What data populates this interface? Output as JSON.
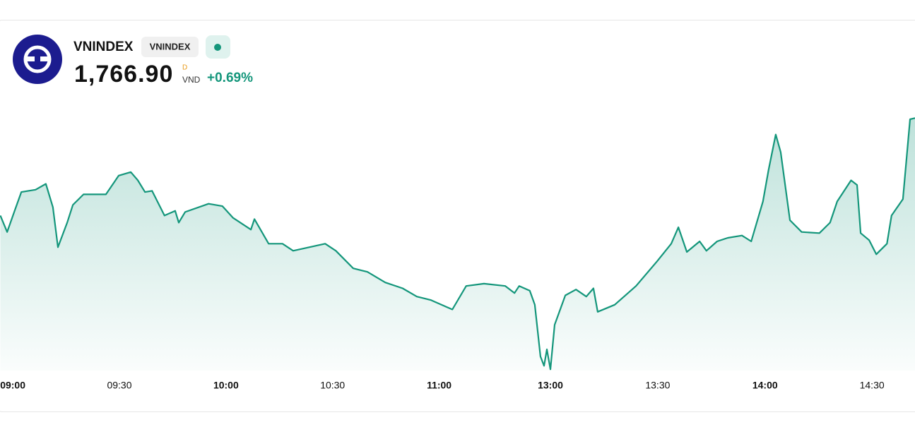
{
  "header": {
    "name": "VNINDEX",
    "badge": "VNINDEX",
    "price": "1,766.90",
    "price_note": "D",
    "currency": "VND",
    "change": "+0.69%"
  },
  "chart_data": {
    "type": "line",
    "color": "#14967b",
    "x": [
      -3.5,
      -1.6,
      0.4,
      2.4,
      6.4,
      9.3,
      11.3,
      12.7,
      15.3,
      16.9,
      19.9,
      26.2,
      29.8,
      33.2,
      35.2,
      37.2,
      39.2,
      42.7,
      45.7,
      46.7,
      48.5,
      55.1,
      59.0,
      62.0,
      67.0,
      68.0,
      72.0,
      75.9,
      78.9,
      87.9,
      90.9,
      95.8,
      99.8,
      104.8,
      109.7,
      113.7,
      117.7,
      123.7,
      127.6,
      132.6,
      138.6,
      141.2,
      142.5,
      145.5,
      146.9,
      148.5,
      149.5,
      150.3,
      151.3,
      152.5,
      155.5,
      158.5,
      161.4,
      163.4,
      164.6,
      169.4,
      175.4,
      181.3,
      185.3,
      187.3,
      189.7,
      193.3,
      195.2,
      198.2,
      201.2,
      205.2,
      207.8,
      211.1,
      212.7,
      214.7,
      216.1,
      218.7,
      222.0,
      227.0,
      230.0,
      232.0,
      235.9,
      237.6,
      238.6,
      241.0,
      243.0,
      246.0,
      247.3,
      250.5,
      252.5,
      253.9
    ],
    "values": [
      1758.6,
      1757.2,
      1758.9,
      1760.6,
      1760.8,
      1761.3,
      1759.3,
      1755.9,
      1758.0,
      1759.5,
      1760.4,
      1760.4,
      1762.0,
      1762.3,
      1761.6,
      1760.6,
      1760.7,
      1758.6,
      1759.0,
      1758.0,
      1758.9,
      1759.6,
      1759.4,
      1758.4,
      1757.4,
      1758.3,
      1756.2,
      1756.2,
      1755.6,
      1756.2,
      1755.6,
      1754.1,
      1753.8,
      1752.9,
      1752.4,
      1751.7,
      1751.4,
      1750.6,
      1752.6,
      1752.8,
      1752.6,
      1752.0,
      1752.6,
      1752.2,
      1751.0,
      1746.6,
      1745.8,
      1747.2,
      1745.5,
      1749.3,
      1751.8,
      1752.3,
      1751.7,
      1752.4,
      1750.4,
      1751.0,
      1752.6,
      1754.7,
      1756.2,
      1757.6,
      1755.5,
      1756.4,
      1755.6,
      1756.4,
      1756.7,
      1756.9,
      1756.4,
      1759.8,
      1762.5,
      1765.5,
      1764.0,
      1758.2,
      1757.2,
      1757.1,
      1758.0,
      1759.8,
      1761.6,
      1761.2,
      1757.1,
      1756.5,
      1755.3,
      1756.2,
      1758.6,
      1760.0,
      1766.8,
      1766.9
    ],
    "xlim": [
      -3.6,
      253.9
    ],
    "ylim": [
      1746,
      1768
    ],
    "xticks": [
      {
        "value": 0,
        "label": "09:00"
      },
      {
        "value": 30,
        "label": "09:30"
      },
      {
        "value": 60,
        "label": "10:00"
      },
      {
        "value": 90,
        "label": "10:30"
      },
      {
        "value": 120,
        "label": "11:00"
      },
      {
        "value": 151.3,
        "label": "13:00"
      },
      {
        "value": 181.5,
        "label": "13:30"
      },
      {
        "value": 211.7,
        "label": "14:00"
      },
      {
        "value": 241.8,
        "label": "14:30"
      }
    ]
  }
}
